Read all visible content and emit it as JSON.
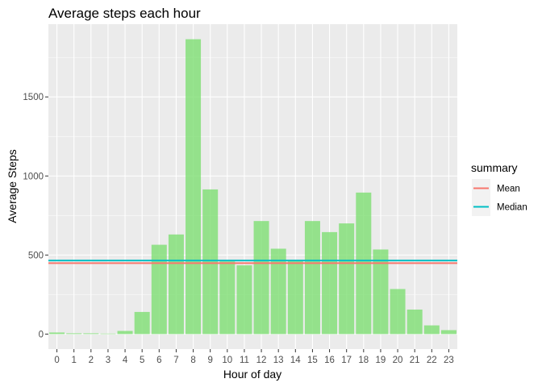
{
  "chart_data": {
    "type": "bar",
    "title": "Average steps each hour",
    "xlabel": "Hour of day",
    "ylabel": "Average Steps",
    "categories": [
      "0",
      "1",
      "2",
      "3",
      "4",
      "5",
      "6",
      "7",
      "8",
      "9",
      "10",
      "11",
      "12",
      "13",
      "14",
      "15",
      "16",
      "17",
      "18",
      "19",
      "20",
      "21",
      "22",
      "23"
    ],
    "series": [
      {
        "values": [
          10,
          5,
          5,
          3,
          20,
          140,
          565,
          630,
          1865,
          915,
          460,
          435,
          715,
          540,
          470,
          715,
          645,
          700,
          895,
          535,
          285,
          155,
          55,
          25
        ],
        "color": "#7ede73"
      }
    ],
    "reference_lines": [
      {
        "name": "Mean",
        "value": 449,
        "color": "#f8766d"
      },
      {
        "name": "Median",
        "value": 465,
        "color": "#00bfc4"
      }
    ],
    "legend": {
      "title": "summary",
      "placement": "right",
      "entries": [
        "Mean",
        "Median"
      ]
    },
    "y_ticks": [
      0,
      500,
      1000,
      1500
    ],
    "ylim": [
      -95,
      1960
    ],
    "grid": true,
    "panel_background": "#ebebeb",
    "grid_color": "#ffffff"
  }
}
